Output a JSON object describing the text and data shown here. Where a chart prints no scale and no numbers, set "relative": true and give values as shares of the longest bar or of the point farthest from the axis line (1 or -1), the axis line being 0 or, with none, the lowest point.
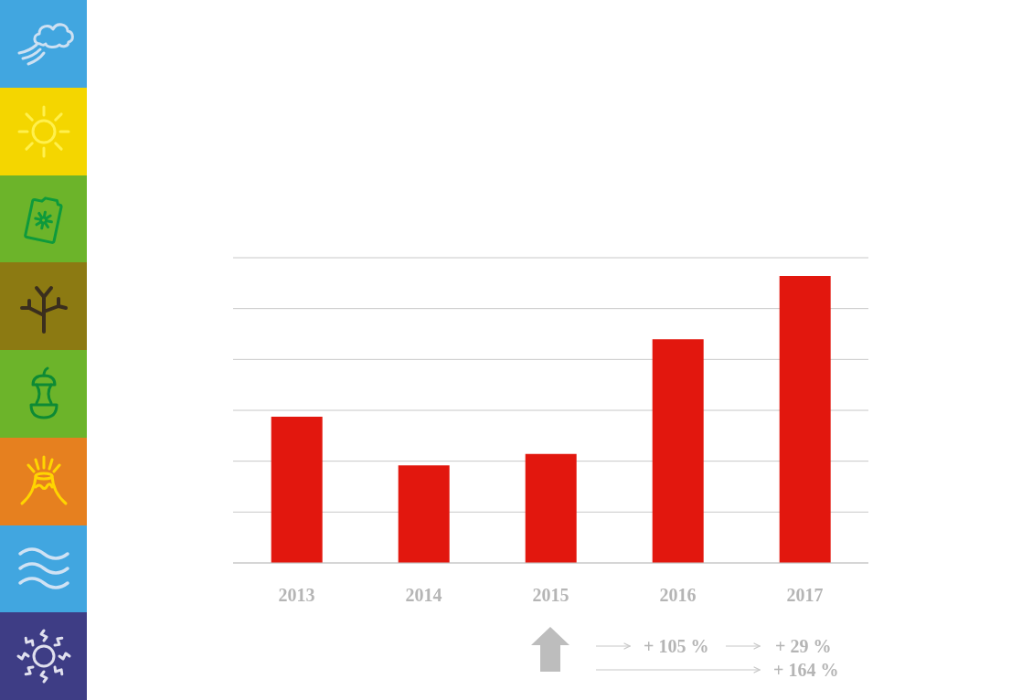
{
  "chart_data": {
    "type": "bar",
    "categories": [
      "2013",
      "2014",
      "2015",
      "2016",
      "2017"
    ],
    "values": [
      0.51,
      0.34,
      0.38,
      0.78,
      1.0
    ],
    "color": "#e2170e",
    "relative": true,
    "grid": "y",
    "annotations": [
      "+ 105 %",
      "+ 29 %",
      "+ 164 %"
    ]
  }
}
